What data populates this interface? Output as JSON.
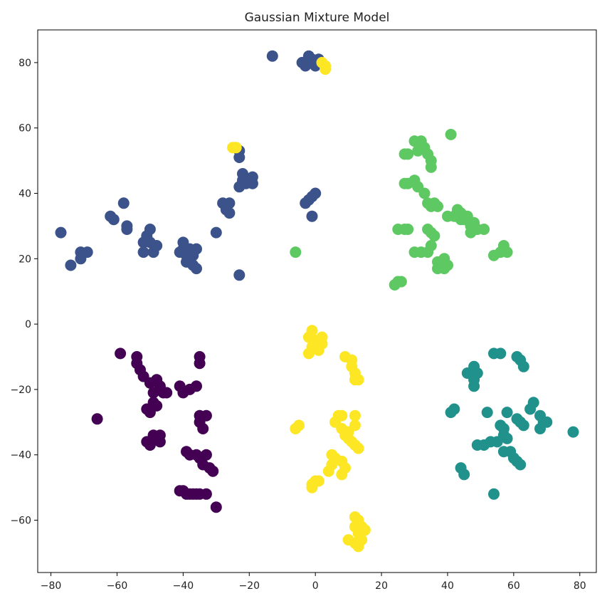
{
  "chart_data": {
    "type": "scatter",
    "title": "Gaussian Mixture Model",
    "xlabel": "",
    "ylabel": "",
    "xlim": [
      -84,
      85
    ],
    "ylim": [
      -76,
      90
    ],
    "xticks": [
      -80,
      -60,
      -40,
      -20,
      0,
      20,
      40,
      60,
      80
    ],
    "yticks": [
      -60,
      -40,
      -20,
      0,
      20,
      40,
      60,
      80
    ],
    "grid": false,
    "legend": "none",
    "colors": {
      "cluster_0": "#440154",
      "cluster_1": "#3b528b",
      "cluster_2": "#21918c",
      "cluster_3": "#5ec962",
      "cluster_4": "#fde725"
    },
    "series": [
      {
        "color": "#440154",
        "points": [
          [
            -59,
            -9
          ],
          [
            -54,
            -10
          ],
          [
            -54,
            -12
          ],
          [
            -53,
            -14
          ],
          [
            -52,
            -16
          ],
          [
            -50,
            -18
          ],
          [
            -48,
            -17
          ],
          [
            -47,
            -19
          ],
          [
            -49,
            -21
          ],
          [
            -46,
            -21
          ],
          [
            -45,
            -21
          ],
          [
            -49,
            -24
          ],
          [
            -48,
            -25
          ],
          [
            -50,
            -27
          ],
          [
            -51,
            -26
          ],
          [
            -66,
            -29
          ],
          [
            -41,
            -19
          ],
          [
            -40,
            -21
          ],
          [
            -38,
            -20
          ],
          [
            -36,
            -19
          ],
          [
            -35,
            -10
          ],
          [
            -35,
            -12
          ],
          [
            -35,
            -28
          ],
          [
            -33,
            -28
          ],
          [
            -35,
            -30
          ],
          [
            -34,
            -32
          ],
          [
            -49,
            -34
          ],
          [
            -47,
            -34
          ],
          [
            -49,
            -35
          ],
          [
            -47,
            -36
          ],
          [
            -51,
            -36
          ],
          [
            -50,
            -37
          ],
          [
            -39,
            -39
          ],
          [
            -38,
            -40
          ],
          [
            -36,
            -40
          ],
          [
            -35,
            -41
          ],
          [
            -33,
            -40
          ],
          [
            -34,
            -43
          ],
          [
            -32,
            -44
          ],
          [
            -31,
            -45
          ],
          [
            -41,
            -51
          ],
          [
            -40,
            -51
          ],
          [
            -39,
            -52
          ],
          [
            -38,
            -52
          ],
          [
            -37,
            -52
          ],
          [
            -36,
            -52
          ],
          [
            -35,
            -52
          ],
          [
            -33,
            -52
          ],
          [
            -30,
            -56
          ]
        ]
      },
      {
        "color": "#3b528b",
        "points": [
          [
            -13,
            82
          ],
          [
            -2,
            82
          ],
          [
            -4,
            80
          ],
          [
            -1,
            81
          ],
          [
            1,
            81
          ],
          [
            0,
            79
          ],
          [
            -3,
            79
          ],
          [
            -23,
            53
          ],
          [
            -23,
            51
          ],
          [
            -22,
            46
          ],
          [
            -22,
            44
          ],
          [
            -19,
            45
          ],
          [
            -19,
            43
          ],
          [
            -21,
            43
          ],
          [
            -23,
            42
          ],
          [
            -28,
            37
          ],
          [
            -26,
            37
          ],
          [
            -27,
            35
          ],
          [
            -26,
            34
          ],
          [
            -30,
            28
          ],
          [
            -23,
            15
          ],
          [
            -3,
            37
          ],
          [
            -2,
            38
          ],
          [
            -1,
            39
          ],
          [
            0,
            40
          ],
          [
            -1,
            33
          ],
          [
            -58,
            37
          ],
          [
            -62,
            33
          ],
          [
            -61,
            32
          ],
          [
            -57,
            30
          ],
          [
            -57,
            29
          ],
          [
            -50,
            29
          ],
          [
            -51,
            27
          ],
          [
            -50,
            25
          ],
          [
            -52,
            25
          ],
          [
            -48,
            24
          ],
          [
            -52,
            22
          ],
          [
            -49,
            22
          ],
          [
            -77,
            28
          ],
          [
            -71,
            22
          ],
          [
            -69,
            22
          ],
          [
            -71,
            20
          ],
          [
            -74,
            18
          ],
          [
            -40,
            25
          ],
          [
            -40,
            23
          ],
          [
            -38,
            23
          ],
          [
            -36,
            23
          ],
          [
            -41,
            22
          ],
          [
            -39,
            21
          ],
          [
            -37,
            21
          ],
          [
            -39,
            19
          ],
          [
            -37,
            18
          ],
          [
            -36,
            17
          ]
        ]
      },
      {
        "color": "#21918c",
        "points": [
          [
            54,
            -9
          ],
          [
            56,
            -9
          ],
          [
            61,
            -10
          ],
          [
            62,
            -11
          ],
          [
            63,
            -13
          ],
          [
            48,
            -13
          ],
          [
            49,
            -15
          ],
          [
            46,
            -15
          ],
          [
            48,
            -17
          ],
          [
            48,
            -19
          ],
          [
            42,
            -26
          ],
          [
            41,
            -27
          ],
          [
            58,
            -27
          ],
          [
            52,
            -27
          ],
          [
            66,
            -24
          ],
          [
            65,
            -26
          ],
          [
            61,
            -29
          ],
          [
            62,
            -30
          ],
          [
            63,
            -31
          ],
          [
            68,
            -28
          ],
          [
            69,
            -30
          ],
          [
            70,
            -30
          ],
          [
            68,
            -32
          ],
          [
            56,
            -31
          ],
          [
            57,
            -32
          ],
          [
            57,
            -34
          ],
          [
            58,
            -35
          ],
          [
            55,
            -36
          ],
          [
            53,
            -36
          ],
          [
            51,
            -37
          ],
          [
            49,
            -37
          ],
          [
            59,
            -39
          ],
          [
            57,
            -39
          ],
          [
            60,
            -41
          ],
          [
            61,
            -42
          ],
          [
            62,
            -43
          ],
          [
            44,
            -44
          ],
          [
            45,
            -46
          ],
          [
            54,
            -52
          ],
          [
            78,
            -33
          ]
        ]
      },
      {
        "color": "#5ec962",
        "points": [
          [
            30,
            56
          ],
          [
            32,
            56
          ],
          [
            33,
            54
          ],
          [
            34,
            52
          ],
          [
            35,
            50
          ],
          [
            35,
            48
          ],
          [
            28,
            52
          ],
          [
            27,
            52
          ],
          [
            31,
            53
          ],
          [
            41,
            58
          ],
          [
            27,
            43
          ],
          [
            28,
            43
          ],
          [
            30,
            44
          ],
          [
            31,
            42
          ],
          [
            33,
            40
          ],
          [
            34,
            37
          ],
          [
            36,
            37
          ],
          [
            35,
            36
          ],
          [
            37,
            36
          ],
          [
            40,
            33
          ],
          [
            42,
            33
          ],
          [
            43,
            35
          ],
          [
            44,
            34
          ],
          [
            45,
            32
          ],
          [
            46,
            33
          ],
          [
            48,
            31
          ],
          [
            47,
            30
          ],
          [
            49,
            29
          ],
          [
            51,
            29
          ],
          [
            47,
            28
          ],
          [
            44,
            32
          ],
          [
            25,
            29
          ],
          [
            27,
            29
          ],
          [
            28,
            29
          ],
          [
            34,
            29
          ],
          [
            35,
            28
          ],
          [
            36,
            27
          ],
          [
            35,
            24
          ],
          [
            34,
            22
          ],
          [
            32,
            22
          ],
          [
            30,
            22
          ],
          [
            37,
            19
          ],
          [
            38,
            18
          ],
          [
            39,
            20
          ],
          [
            40,
            18
          ],
          [
            37,
            17
          ],
          [
            39,
            17
          ],
          [
            24,
            12
          ],
          [
            25,
            13
          ],
          [
            26,
            13
          ],
          [
            57,
            24
          ],
          [
            56,
            22
          ],
          [
            58,
            22
          ],
          [
            54,
            21
          ],
          [
            -6,
            22
          ]
        ]
      },
      {
        "color": "#fde725",
        "points": [
          [
            -1,
            -2
          ],
          [
            -2,
            -4
          ],
          [
            0,
            -5
          ],
          [
            -1,
            -7
          ],
          [
            -2,
            -9
          ],
          [
            1,
            -8
          ],
          [
            2,
            -6
          ],
          [
            2,
            -4
          ],
          [
            9,
            -10
          ],
          [
            11,
            -11
          ],
          [
            11,
            -13
          ],
          [
            12,
            -15
          ],
          [
            12,
            -17
          ],
          [
            13,
            -17
          ],
          [
            7,
            -28
          ],
          [
            8,
            -28
          ],
          [
            6,
            -30
          ],
          [
            8,
            -32
          ],
          [
            9,
            -34
          ],
          [
            10,
            -33
          ],
          [
            10,
            -35
          ],
          [
            11,
            -36
          ],
          [
            12,
            -37
          ],
          [
            13,
            -38
          ],
          [
            12,
            -31
          ],
          [
            12,
            -28
          ],
          [
            -5,
            -31
          ],
          [
            -6,
            -32
          ],
          [
            5,
            -40
          ],
          [
            6,
            -41
          ],
          [
            5,
            -43
          ],
          [
            4,
            -45
          ],
          [
            8,
            -42
          ],
          [
            9,
            -44
          ],
          [
            8,
            -46
          ],
          [
            0,
            -48
          ],
          [
            -1,
            -49
          ],
          [
            -1,
            -50
          ],
          [
            1,
            -48
          ],
          [
            12,
            -59
          ],
          [
            13,
            -60
          ],
          [
            12,
            -62
          ],
          [
            14,
            -62
          ],
          [
            15,
            -63
          ],
          [
            13,
            -64
          ],
          [
            14,
            -66
          ],
          [
            10,
            -66
          ],
          [
            12,
            -67
          ],
          [
            13,
            -68
          ],
          [
            -25,
            54
          ],
          [
            -24,
            54
          ],
          [
            2,
            80
          ],
          [
            3,
            79
          ],
          [
            3,
            78
          ]
        ]
      }
    ]
  }
}
